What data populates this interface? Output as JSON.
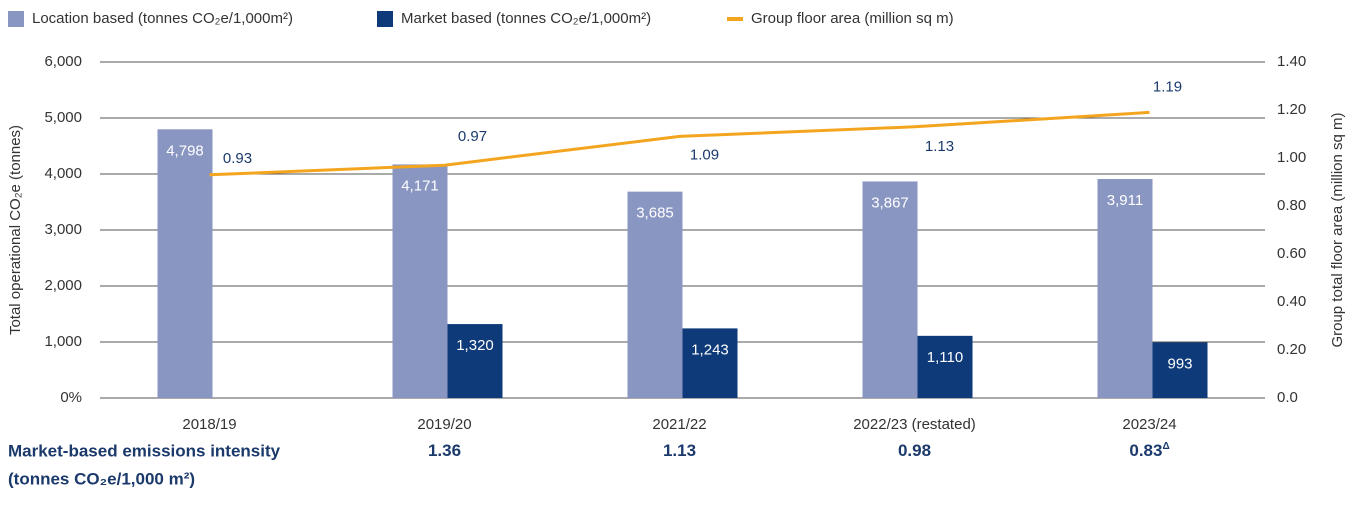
{
  "chart_data": {
    "type": "bar_line",
    "categories": [
      "2018/19",
      "2019/20",
      "2021/22",
      "2022/23 (restated)",
      "2023/24"
    ],
    "series": [
      {
        "name": "Location based (tonnes CO₂e/1,000m²)",
        "color": "#8a96c2",
        "values": [
          4798,
          4171,
          3685,
          3867,
          3911
        ],
        "value_labels": [
          "4,798",
          "4,171",
          "3,685",
          "3,867",
          "3,911"
        ]
      },
      {
        "name": "Market based (tonnes CO₂e/1,000m²)",
        "color": "#0e3a79",
        "values": [
          null,
          1320,
          1243,
          1110,
          993
        ],
        "value_labels": [
          null,
          "1,320",
          "1,243",
          "1,110",
          "993"
        ]
      },
      {
        "name": "Group floor area (million sq m)",
        "color": "#f4a51f",
        "axis": "y2",
        "values": [
          0.93,
          0.97,
          1.09,
          1.13,
          1.19
        ]
      }
    ],
    "ylabel": "Total operational CO₂e (tonnes)",
    "y2label": "Group total floor area (million sq m)",
    "ylim": [
      0,
      6000
    ],
    "yticks": [
      {
        "value": 0,
        "label": "0%"
      },
      {
        "value": 1000,
        "label": "1,000"
      },
      {
        "value": 2000,
        "label": "2,000"
      },
      {
        "value": 3000,
        "label": "3,000"
      },
      {
        "value": 4000,
        "label": "4,000"
      },
      {
        "value": 5000,
        "label": "5,000"
      },
      {
        "value": 6000,
        "label": "6,000"
      }
    ],
    "y2lim": [
      0,
      1.4
    ],
    "y2ticks": [
      {
        "value": 0,
        "label": "0.0"
      },
      {
        "value": 0.2,
        "label": "0.20"
      },
      {
        "value": 0.4,
        "label": "0.40"
      },
      {
        "value": 0.6,
        "label": "0.60"
      },
      {
        "value": 0.8,
        "label": "0.80"
      },
      {
        "value": 1.0,
        "label": "1.00"
      },
      {
        "value": 1.2,
        "label": "1.20"
      },
      {
        "value": 1.4,
        "label": "1.40"
      }
    ],
    "grid": true,
    "legend": "top",
    "intensity": {
      "label": [
        "Market-based emissions intensity",
        "(tonnes CO₂e/1,000 m²)"
      ],
      "values": [
        null,
        1.36,
        1.13,
        0.98,
        0.83
      ],
      "last_value_mark": "Δ"
    }
  }
}
